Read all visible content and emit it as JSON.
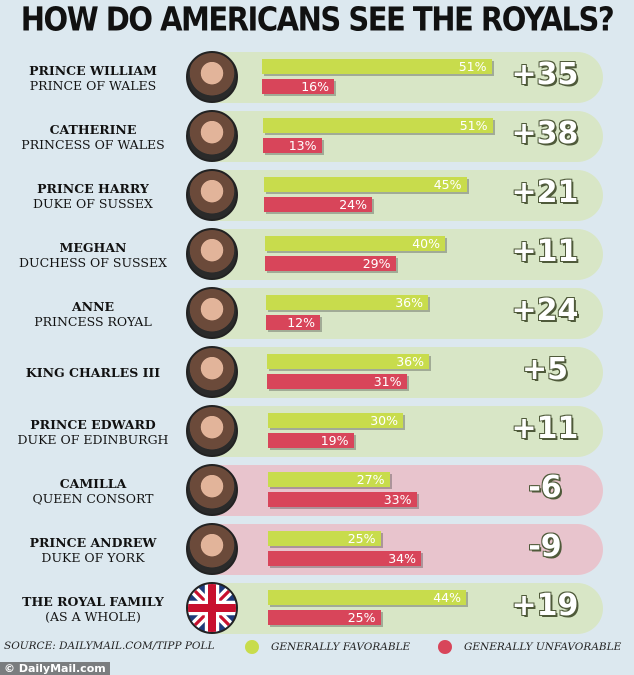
{
  "chart_data": {
    "type": "bar",
    "title": "HOW DO AMERICANS SEE THE ROYALS?",
    "categories": [
      {
        "name": "PRINCE WILLIAM",
        "subtitle": "PRINCE OF WALES",
        "favorable": 51,
        "unfavorable": 16,
        "net": "+35"
      },
      {
        "name": "CATHERINE",
        "subtitle": "PRINCESS OF WALES",
        "favorable": 51,
        "unfavorable": 13,
        "net": "+38"
      },
      {
        "name": "PRINCE HARRY",
        "subtitle": "DUKE OF SUSSEX",
        "favorable": 45,
        "unfavorable": 24,
        "net": "+21"
      },
      {
        "name": "MEGHAN",
        "subtitle": "DUCHESS OF SUSSEX",
        "favorable": 40,
        "unfavorable": 29,
        "net": "+11"
      },
      {
        "name": "ANNE",
        "subtitle": "PRINCESS ROYAL",
        "favorable": 36,
        "unfavorable": 12,
        "net": "+24"
      },
      {
        "name": "KING CHARLES III",
        "subtitle": "",
        "favorable": 36,
        "unfavorable": 31,
        "net": "+5"
      },
      {
        "name": "PRINCE EDWARD",
        "subtitle": "DUKE OF EDINBURGH",
        "favorable": 30,
        "unfavorable": 19,
        "net": "+11"
      },
      {
        "name": "CAMILLA",
        "subtitle": "QUEEN CONSORT",
        "favorable": 27,
        "unfavorable": 33,
        "net": "-6"
      },
      {
        "name": "PRINCE ANDREW",
        "subtitle": "DUKE OF YORK",
        "favorable": 25,
        "unfavorable": 34,
        "net": "-9"
      },
      {
        "name": "THE ROYAL FAMILY",
        "subtitle": "(AS A WHOLE)",
        "favorable": 44,
        "unfavorable": 25,
        "net": "+19"
      }
    ],
    "series": [
      {
        "name": "GENERALLY FAVORABLE",
        "color": "#c8dc4c"
      },
      {
        "name": "GENERALLY UNFAVORABLE",
        "color": "#d8455a"
      }
    ],
    "legend": "bottom",
    "units": "%"
  },
  "source": "SOURCE: DAILYMAIL.COM/TIPP POLL",
  "watermark": "© DailyMail.com"
}
